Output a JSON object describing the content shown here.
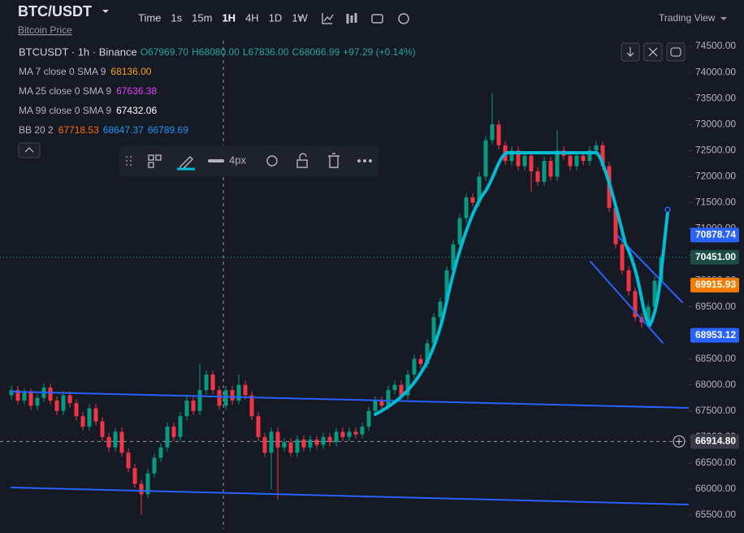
{
  "header": {
    "symbol": "BTC/USDT",
    "subtitle": "Bitcoin Price",
    "timeframes": [
      "Time",
      "1s",
      "15m",
      "1H",
      "4H",
      "1D",
      "1W"
    ],
    "brand": "Trading View"
  },
  "legend": {
    "title": "BTCUSDT · 1h · Binance",
    "ohlc": [
      "O67969.70",
      "H68080.00",
      "L67836.00",
      "C68066.99",
      "+97.29 (+0.14%)"
    ],
    "indicators": [
      {
        "name": "MA 7 close 0 SMA 9",
        "values": [
          "68136.00"
        ],
        "colors": [
          "#f7a21b"
        ]
      },
      {
        "name": "MA 25 close 0 SMA 9",
        "values": [
          "67636.38"
        ],
        "colors": [
          "#e040fb"
        ]
      },
      {
        "name": "MA 99 close 0 SMA 9",
        "values": [
          "67432.06"
        ],
        "colors": [
          "#ffffff"
        ]
      },
      {
        "name": "BB 20 2",
        "values": [
          "67718.53",
          "68647.37",
          "66789.69"
        ],
        "colors": [
          "#ff6d00",
          "#2196f3",
          "#2196f3"
        ]
      }
    ]
  },
  "toolbar": {
    "width_label": "4px"
  },
  "chart": {
    "type": "candlestick",
    "up_color": "#089981",
    "down_color": "#f23645",
    "ylim": [
      65235,
      74610
    ],
    "yticks": [
      {
        "value": 65500,
        "label": "65500.00"
      },
      {
        "value": 66000,
        "label": "66000.00"
      },
      {
        "value": 66500,
        "label": "66500.00"
      },
      {
        "value": 67000,
        "label": "67000.00"
      },
      {
        "value": 67500,
        "label": "67500.00"
      },
      {
        "value": 68000,
        "label": "68000.00"
      },
      {
        "value": 68500,
        "label": "68500.00"
      },
      {
        "value": 69000,
        "label": "69000.00"
      },
      {
        "value": 69500,
        "label": "69500.00"
      },
      {
        "value": 70000,
        "label": "70000.00"
      },
      {
        "value": 70500,
        "label": "70500.00"
      },
      {
        "value": 71000,
        "label": "71000.00"
      },
      {
        "value": 71500,
        "label": "71500.00"
      },
      {
        "value": 72000,
        "label": "72000.00"
      },
      {
        "value": 72500,
        "label": "72500.00"
      },
      {
        "value": 73000,
        "label": "73000.00"
      },
      {
        "value": 73500,
        "label": "73500.00"
      },
      {
        "value": 74000,
        "label": "74000.00"
      },
      {
        "value": 74500,
        "label": "74500.00"
      }
    ],
    "badges": [
      {
        "value": 70878.74,
        "label": "70878.74",
        "color": "#2962ff"
      },
      {
        "value": 70451,
        "label": "70451.00",
        "color": "#1e4d45"
      },
      {
        "value": 69915.93,
        "label": "69915.93",
        "color": "#f57c00"
      },
      {
        "value": 68953.12,
        "label": "68953.12",
        "color": "#2962ff"
      },
      {
        "value": 66914.8,
        "label": "66914.80",
        "color": "#363a45"
      }
    ],
    "candles": [
      [
        67800,
        67980,
        67720,
        67900
      ],
      [
        67900,
        67980,
        67620,
        67700
      ],
      [
        67700,
        67930,
        67620,
        67850
      ],
      [
        67850,
        67930,
        67520,
        67600
      ],
      [
        67600,
        67830,
        67520,
        67750
      ],
      [
        67750,
        68030,
        67670,
        67950
      ],
      [
        67950,
        68030,
        67620,
        67700
      ],
      [
        67700,
        67780,
        67420,
        67500
      ],
      [
        67500,
        67880,
        67420,
        67800
      ],
      [
        67800,
        67880,
        67570,
        67650
      ],
      [
        67650,
        67730,
        67320,
        67400
      ],
      [
        67400,
        67480,
        67120,
        67200
      ],
      [
        67200,
        67630,
        67120,
        67550
      ],
      [
        67550,
        67630,
        67220,
        67300
      ],
      [
        67300,
        67380,
        66920,
        67000
      ],
      [
        67000,
        67080,
        66720,
        66800
      ],
      [
        66800,
        67180,
        66720,
        67100
      ],
      [
        67100,
        67180,
        66620,
        66700
      ],
      [
        66700,
        66780,
        66320,
        66400
      ],
      [
        66400,
        66480,
        66020,
        66100
      ],
      [
        66100,
        66180,
        65500,
        65900
      ],
      [
        65900,
        66380,
        65820,
        66300
      ],
      [
        66300,
        66680,
        66220,
        66600
      ],
      [
        66600,
        66880,
        66520,
        66800
      ],
      [
        66800,
        67280,
        66720,
        67200
      ],
      [
        67200,
        67280,
        66920,
        67000
      ],
      [
        67000,
        67480,
        66920,
        67400
      ],
      [
        67400,
        67780,
        67320,
        67700
      ],
      [
        67700,
        67780,
        67420,
        67500
      ],
      [
        67500,
        68400,
        67420,
        67900
      ],
      [
        67900,
        68280,
        67820,
        68200
      ],
      [
        68200,
        68280,
        67820,
        67900
      ],
      [
        67900,
        67980,
        67520,
        67600
      ],
      [
        67600,
        67980,
        67520,
        67900
      ],
      [
        67900,
        67980,
        67620,
        67700
      ],
      [
        67700,
        68200,
        67620,
        68000
      ],
      [
        68000,
        68080,
        67720,
        67800
      ],
      [
        67800,
        67880,
        67320,
        67400
      ],
      [
        67400,
        67480,
        66920,
        67000
      ],
      [
        67000,
        67080,
        66620,
        66700
      ],
      [
        66700,
        67180,
        66000,
        67100
      ],
      [
        67100,
        67180,
        65800,
        66800
      ],
      [
        66800,
        66980,
        66720,
        66900
      ],
      [
        66900,
        66980,
        66620,
        66700
      ],
      [
        66700,
        67030,
        66620,
        66950
      ],
      [
        66950,
        67030,
        66720,
        66800
      ],
      [
        66800,
        67030,
        66720,
        66950
      ],
      [
        66950,
        67030,
        66770,
        66850
      ],
      [
        66850,
        67080,
        66770,
        67000
      ],
      [
        67000,
        67080,
        66820,
        66900
      ],
      [
        66900,
        67180,
        66820,
        67100
      ],
      [
        67100,
        67180,
        66920,
        67000
      ],
      [
        67000,
        67180,
        66920,
        67100
      ],
      [
        67100,
        67180,
        66970,
        67050
      ],
      [
        67050,
        67280,
        66970,
        67200
      ],
      [
        67200,
        67580,
        67120,
        67500
      ],
      [
        67500,
        67780,
        67420,
        67700
      ],
      [
        67700,
        67780,
        67520,
        67600
      ],
      [
        67600,
        67980,
        67520,
        67900
      ],
      [
        67900,
        68080,
        67820,
        68000
      ],
      [
        68000,
        68080,
        67720,
        67800
      ],
      [
        67800,
        68280,
        67720,
        68200
      ],
      [
        68200,
        68580,
        68120,
        68500
      ],
      [
        68500,
        68580,
        68320,
        68400
      ],
      [
        68400,
        68880,
        68320,
        68800
      ],
      [
        68800,
        69380,
        68720,
        69300
      ],
      [
        69300,
        69680,
        69220,
        69600
      ],
      [
        69600,
        70280,
        69520,
        70200
      ],
      [
        70200,
        70780,
        70120,
        70700
      ],
      [
        70700,
        71280,
        70620,
        71200
      ],
      [
        71200,
        71680,
        71120,
        71600
      ],
      [
        71600,
        71680,
        71420,
        71500
      ],
      [
        71500,
        72080,
        71420,
        72000
      ],
      [
        72000,
        72780,
        71920,
        72700
      ],
      [
        72700,
        73600,
        72620,
        73000
      ],
      [
        73000,
        73080,
        72520,
        72600
      ],
      [
        72600,
        72680,
        72220,
        72300
      ],
      [
        72300,
        72580,
        72220,
        72500
      ],
      [
        72500,
        72580,
        72120,
        72200
      ],
      [
        72200,
        72480,
        72120,
        72400
      ],
      [
        72400,
        72480,
        71700,
        72100
      ],
      [
        72100,
        72180,
        71820,
        71900
      ],
      [
        71900,
        72380,
        71820,
        72300
      ],
      [
        72300,
        72380,
        71920,
        72000
      ],
      [
        72000,
        72900,
        71920,
        72500
      ],
      [
        72500,
        72580,
        72320,
        72400
      ],
      [
        72400,
        72480,
        72120,
        72200
      ],
      [
        72200,
        72480,
        72120,
        72400
      ],
      [
        72400,
        72480,
        72220,
        72300
      ],
      [
        72300,
        72580,
        72220,
        72500
      ],
      [
        72500,
        72680,
        72420,
        72600
      ],
      [
        72600,
        72680,
        72120,
        72200
      ],
      [
        72200,
        72280,
        71320,
        71400
      ],
      [
        71400,
        71480,
        70620,
        70700
      ],
      [
        70700,
        70780,
        70120,
        70200
      ],
      [
        70200,
        70280,
        69720,
        69800
      ],
      [
        69800,
        69880,
        69220,
        69300
      ],
      [
        69300,
        69380,
        69100,
        69200
      ],
      [
        69200,
        69580,
        69120,
        69500
      ],
      [
        69500,
        70080,
        69420,
        70000
      ],
      [
        70000,
        70500,
        69920,
        70451
      ]
    ]
  }
}
